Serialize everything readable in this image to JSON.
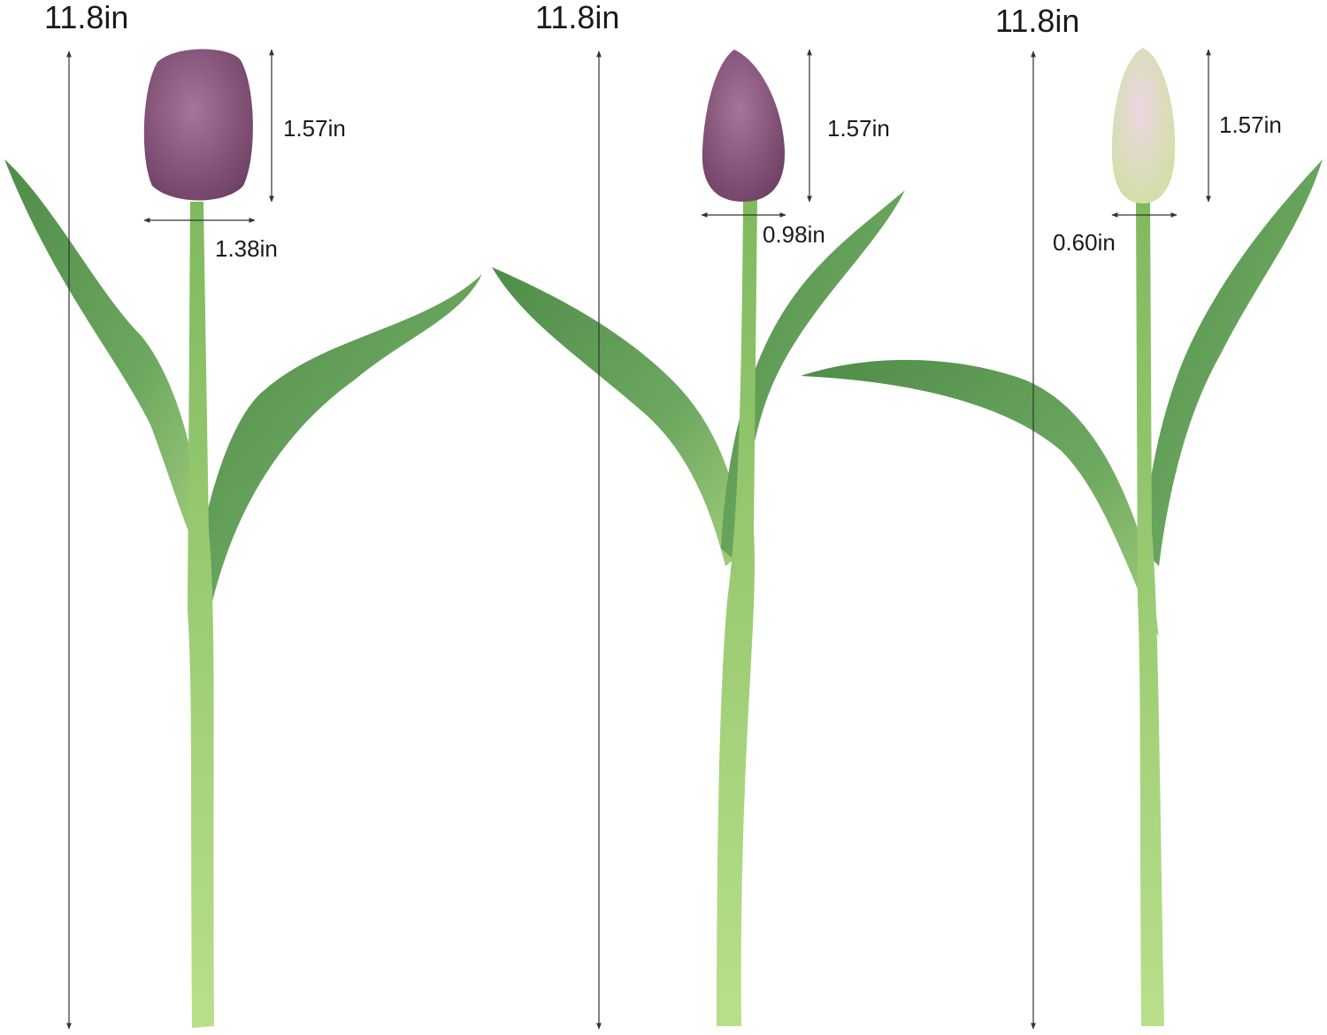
{
  "colors": {
    "bloom_purple": "#8c5a80",
    "bloom_pale": "#dde6b6",
    "leaf": "#5f9b57",
    "stem": "#8dc46a",
    "stem_base": "#b6dc88"
  },
  "tulips": [
    {
      "height_label": "11.8in",
      "bloom_height_label": "1.57in",
      "bloom_width_label": "1.38in"
    },
    {
      "height_label": "11.8in",
      "bloom_height_label": "1.57in",
      "bloom_width_label": "0.98in"
    },
    {
      "height_label": "11.8in",
      "bloom_height_label": "1.57in",
      "bloom_width_label": "0.60in"
    }
  ]
}
